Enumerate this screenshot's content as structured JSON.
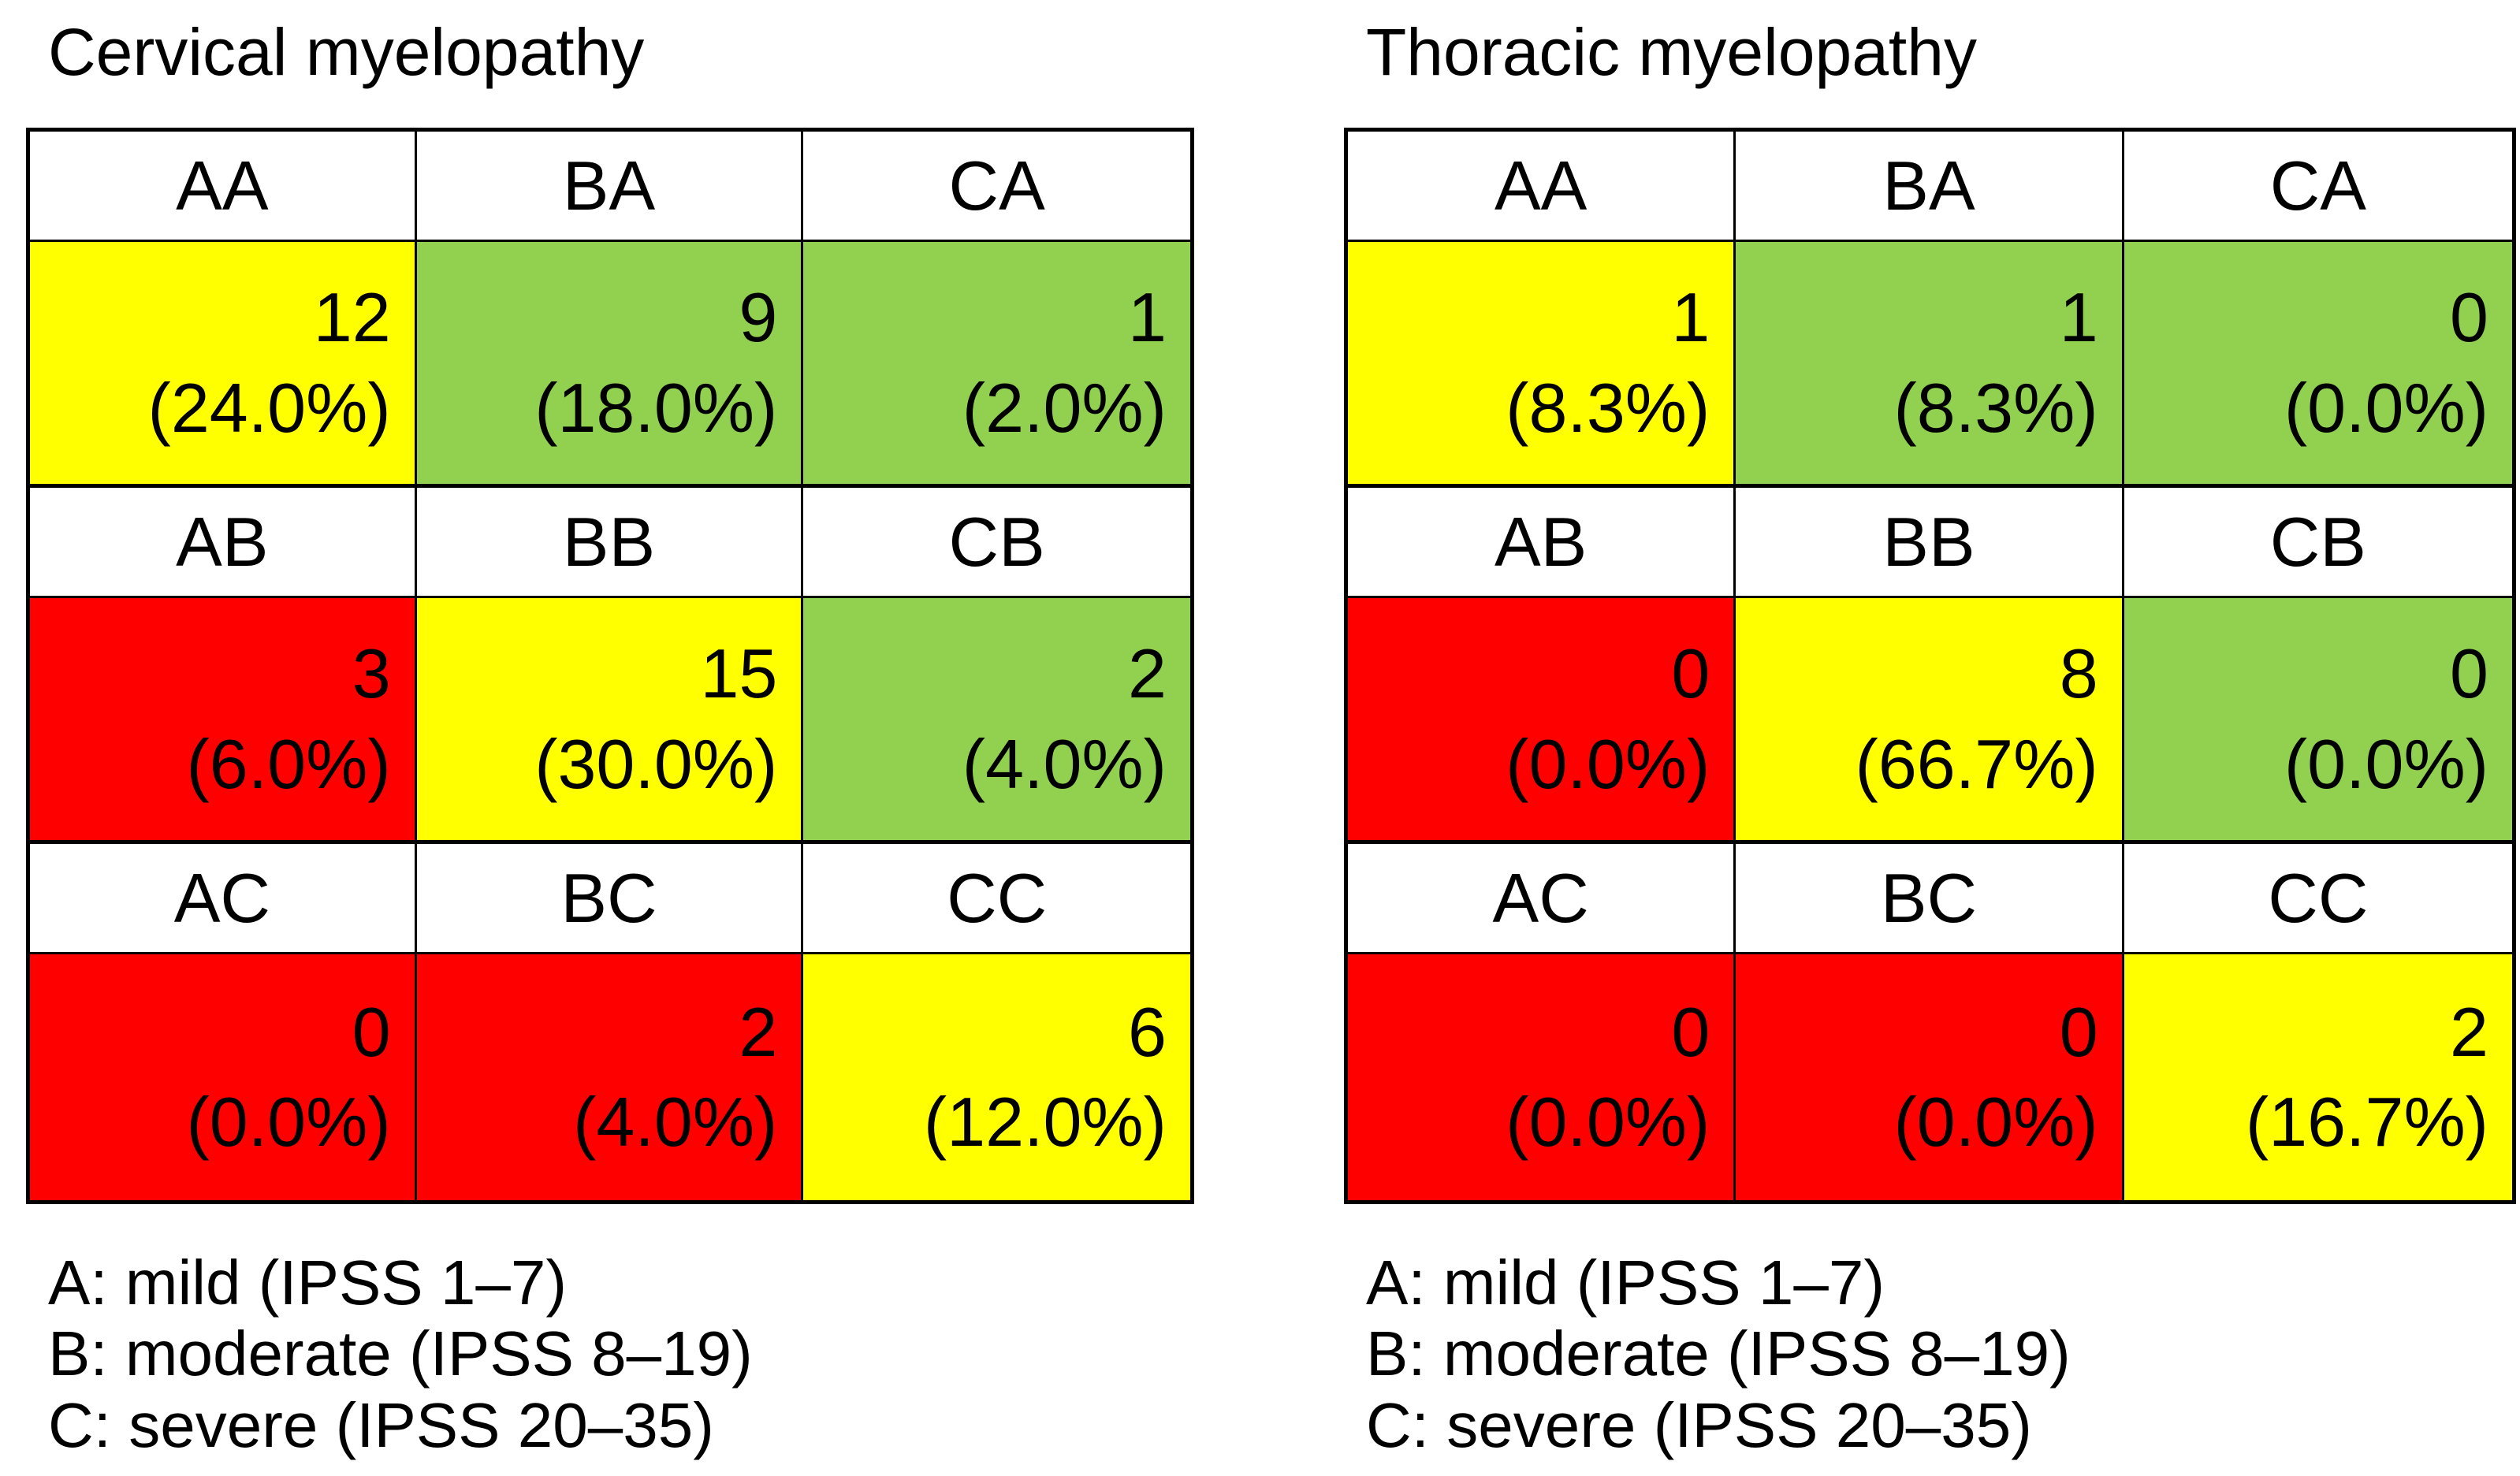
{
  "colors": {
    "yellow": "#ffff00",
    "green": "#92d050",
    "red": "#ff0000",
    "white": "#ffffff",
    "border": "#000000",
    "text": "#000000"
  },
  "panels": [
    {
      "title": "Cervical myelopathy",
      "rows": [
        {
          "headers": [
            "AA",
            "BA",
            "CA"
          ],
          "cells": [
            {
              "count": "12",
              "percent": "(24.0%)",
              "color": "yellow"
            },
            {
              "count": "9",
              "percent": "(18.0%)",
              "color": "green"
            },
            {
              "count": "1",
              "percent": "(2.0%)",
              "color": "green"
            }
          ]
        },
        {
          "headers": [
            "AB",
            "BB",
            "CB"
          ],
          "cells": [
            {
              "count": "3",
              "percent": "(6.0%)",
              "color": "red"
            },
            {
              "count": "15",
              "percent": "(30.0%)",
              "color": "yellow"
            },
            {
              "count": "2",
              "percent": "(4.0%)",
              "color": "green"
            }
          ]
        },
        {
          "headers": [
            "AC",
            "BC",
            "CC"
          ],
          "cells": [
            {
              "count": "0",
              "percent": "(0.0%)",
              "color": "red"
            },
            {
              "count": "2",
              "percent": "(4.0%)",
              "color": "red"
            },
            {
              "count": "6",
              "percent": "(12.0%)",
              "color": "yellow"
            }
          ]
        }
      ],
      "legend": [
        "A: mild (IPSS 1–7)",
        "B: moderate (IPSS 8–19)",
        "C: severe (IPSS 20–35)"
      ]
    },
    {
      "title": "Thoracic myelopathy",
      "rows": [
        {
          "headers": [
            "AA",
            "BA",
            "CA"
          ],
          "cells": [
            {
              "count": "1",
              "percent": "(8.3%)",
              "color": "yellow"
            },
            {
              "count": "1",
              "percent": "(8.3%)",
              "color": "green"
            },
            {
              "count": "0",
              "percent": "(0.0%)",
              "color": "green"
            }
          ]
        },
        {
          "headers": [
            "AB",
            "BB",
            "CB"
          ],
          "cells": [
            {
              "count": "0",
              "percent": "(0.0%)",
              "color": "red"
            },
            {
              "count": "8",
              "percent": "(66.7%)",
              "color": "yellow"
            },
            {
              "count": "0",
              "percent": "(0.0%)",
              "color": "green"
            }
          ]
        },
        {
          "headers": [
            "AC",
            "BC",
            "CC"
          ],
          "cells": [
            {
              "count": "0",
              "percent": "(0.0%)",
              "color": "red"
            },
            {
              "count": "0",
              "percent": "(0.0%)",
              "color": "red"
            },
            {
              "count": "2",
              "percent": "(16.7%)",
              "color": "yellow"
            }
          ]
        }
      ],
      "legend": [
        "A: mild (IPSS 1–7)",
        "B: moderate (IPSS 8–19)",
        "C: severe (IPSS 20–35)"
      ]
    }
  ],
  "chart_data": [
    {
      "type": "table",
      "title": "Cervical myelopathy",
      "cells": [
        {
          "label": "AA",
          "count": 12,
          "percent": 24.0,
          "color": "yellow"
        },
        {
          "label": "BA",
          "count": 9,
          "percent": 18.0,
          "color": "green"
        },
        {
          "label": "CA",
          "count": 1,
          "percent": 2.0,
          "color": "green"
        },
        {
          "label": "AB",
          "count": 3,
          "percent": 6.0,
          "color": "red"
        },
        {
          "label": "BB",
          "count": 15,
          "percent": 30.0,
          "color": "yellow"
        },
        {
          "label": "CB",
          "count": 2,
          "percent": 4.0,
          "color": "green"
        },
        {
          "label": "AC",
          "count": 0,
          "percent": 0.0,
          "color": "red"
        },
        {
          "label": "BC",
          "count": 2,
          "percent": 4.0,
          "color": "red"
        },
        {
          "label": "CC",
          "count": 6,
          "percent": 12.0,
          "color": "yellow"
        }
      ],
      "legend": [
        "A: mild (IPSS 1–7)",
        "B: moderate (IPSS 8–19)",
        "C: severe (IPSS 20–35)"
      ],
      "layout": "3x3 matrix, each cell shows count and (percent); cell fill encodes status (green/yellow/red)"
    },
    {
      "type": "table",
      "title": "Thoracic myelopathy",
      "cells": [
        {
          "label": "AA",
          "count": 1,
          "percent": 8.3,
          "color": "yellow"
        },
        {
          "label": "BA",
          "count": 1,
          "percent": 8.3,
          "color": "green"
        },
        {
          "label": "CA",
          "count": 0,
          "percent": 0.0,
          "color": "green"
        },
        {
          "label": "AB",
          "count": 0,
          "percent": 0.0,
          "color": "red"
        },
        {
          "label": "BB",
          "count": 8,
          "percent": 66.7,
          "color": "yellow"
        },
        {
          "label": "CB",
          "count": 0,
          "percent": 0.0,
          "color": "green"
        },
        {
          "label": "AC",
          "count": 0,
          "percent": 0.0,
          "color": "red"
        },
        {
          "label": "BC",
          "count": 0,
          "percent": 0.0,
          "color": "red"
        },
        {
          "label": "CC",
          "count": 2,
          "percent": 16.7,
          "color": "yellow"
        }
      ],
      "legend": [
        "A: mild (IPSS 1–7)",
        "B: moderate (IPSS 8–19)",
        "C: severe (IPSS 20–35)"
      ],
      "layout": "3x3 matrix, each cell shows count and (percent); cell fill encodes status (green/yellow/red)"
    }
  ]
}
